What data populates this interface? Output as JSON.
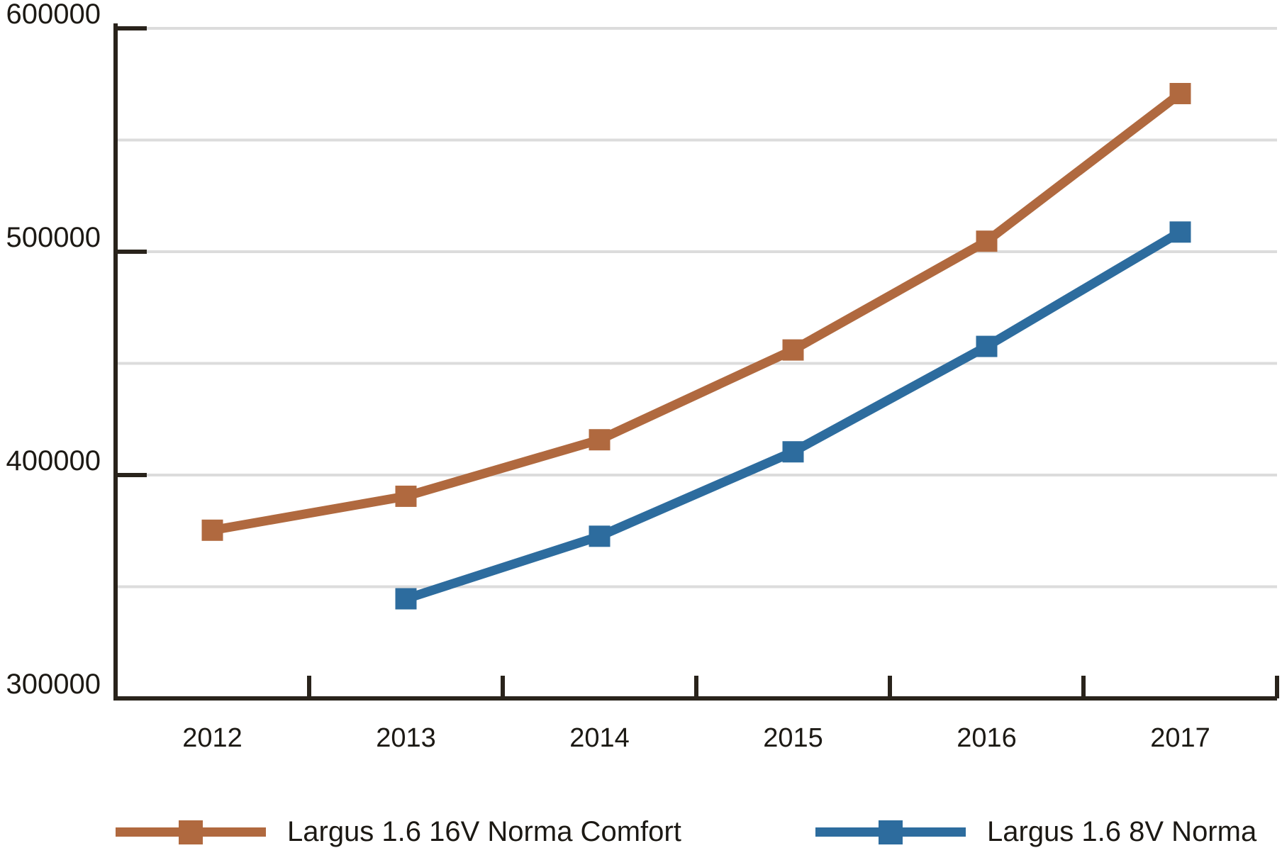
{
  "chart_data": {
    "type": "line",
    "title": "",
    "xlabel": "",
    "ylabel": "",
    "categories": [
      "2012",
      "2013",
      "2014",
      "2015",
      "2016",
      "2017"
    ],
    "series": [
      {
        "name": "Largus 1.6 16V Norma Comfort",
        "color": "#b0693f",
        "marker": "square",
        "values": [
          375300,
          390500,
          415800,
          456000,
          504700,
          570800
        ]
      },
      {
        "name": "Largus 1.6 8V Norma",
        "color": "#2d6c9e",
        "marker": "square",
        "values": [
          null,
          344600,
          372600,
          410400,
          457600,
          508800
        ]
      }
    ],
    "ylim": [
      300000,
      600000
    ],
    "ytick_values": [
      300000,
      400000,
      500000,
      600000
    ],
    "ytick_labels": [
      "300000",
      "400000",
      "500000",
      "600000"
    ],
    "gridline_values": [
      350000,
      400000,
      450000,
      500000,
      550000,
      600000
    ],
    "grid": "horizontal-only",
    "legend_position": "bottom",
    "axis_color": "#29231b",
    "gridline_color": "#dcdcdc",
    "background_color": "#ffffff"
  }
}
